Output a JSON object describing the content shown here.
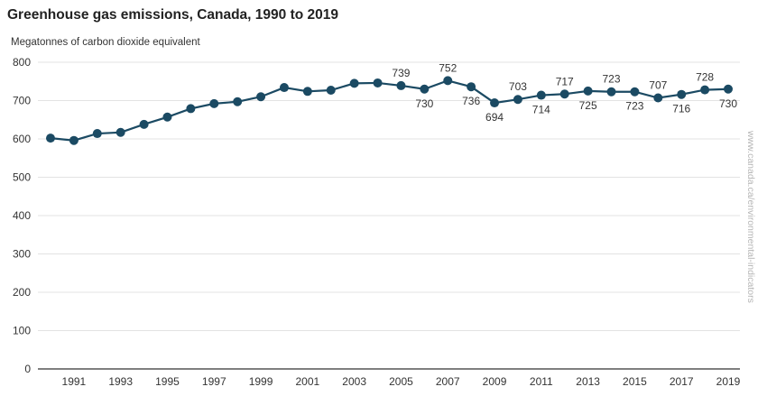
{
  "chart_data": {
    "type": "line",
    "title": "Greenhouse gas emissions, Canada, 1990 to 2019",
    "unit_label": "Megatonnes of carbon dioxide equivalent",
    "source_note": "www.canada.ca/environmental-indicators",
    "ylim": [
      0,
      800
    ],
    "y_ticks": [
      "0",
      "100",
      "200",
      "300",
      "400",
      "500",
      "600",
      "700",
      "800"
    ],
    "x_ticks": [
      "1991",
      "1993",
      "1995",
      "1997",
      "1999",
      "2001",
      "2003",
      "2005",
      "2007",
      "2009",
      "2011",
      "2013",
      "2015",
      "2017",
      "2019"
    ],
    "grid": true,
    "series_color": "#1b4a63",
    "x": [
      1990,
      1991,
      1992,
      1993,
      1994,
      1995,
      1996,
      1997,
      1998,
      1999,
      2000,
      2001,
      2002,
      2003,
      2004,
      2005,
      2006,
      2007,
      2008,
      2009,
      2010,
      2011,
      2012,
      2013,
      2014,
      2015,
      2016,
      2017,
      2018,
      2019
    ],
    "values": [
      602,
      596,
      614,
      617,
      638,
      657,
      679,
      692,
      697,
      710,
      734,
      724,
      727,
      745,
      746,
      739,
      730,
      752,
      736,
      694,
      703,
      714,
      717,
      725,
      723,
      723,
      707,
      716,
      728,
      730
    ],
    "data_labels": [
      {
        "x": 2005,
        "text": "739",
        "pos": "above"
      },
      {
        "x": 2006,
        "text": "730",
        "pos": "below"
      },
      {
        "x": 2007,
        "text": "752",
        "pos": "above"
      },
      {
        "x": 2008,
        "text": "736",
        "pos": "below"
      },
      {
        "x": 2009,
        "text": "694",
        "pos": "below"
      },
      {
        "x": 2010,
        "text": "703",
        "pos": "above"
      },
      {
        "x": 2011,
        "text": "714",
        "pos": "below"
      },
      {
        "x": 2012,
        "text": "717",
        "pos": "above"
      },
      {
        "x": 2013,
        "text": "725",
        "pos": "below"
      },
      {
        "x": 2014,
        "text": "723",
        "pos": "above"
      },
      {
        "x": 2015,
        "text": "723",
        "pos": "below"
      },
      {
        "x": 2016,
        "text": "707",
        "pos": "above"
      },
      {
        "x": 2017,
        "text": "716",
        "pos": "below"
      },
      {
        "x": 2018,
        "text": "728",
        "pos": "above"
      },
      {
        "x": 2019,
        "text": "730",
        "pos": "below"
      }
    ]
  }
}
